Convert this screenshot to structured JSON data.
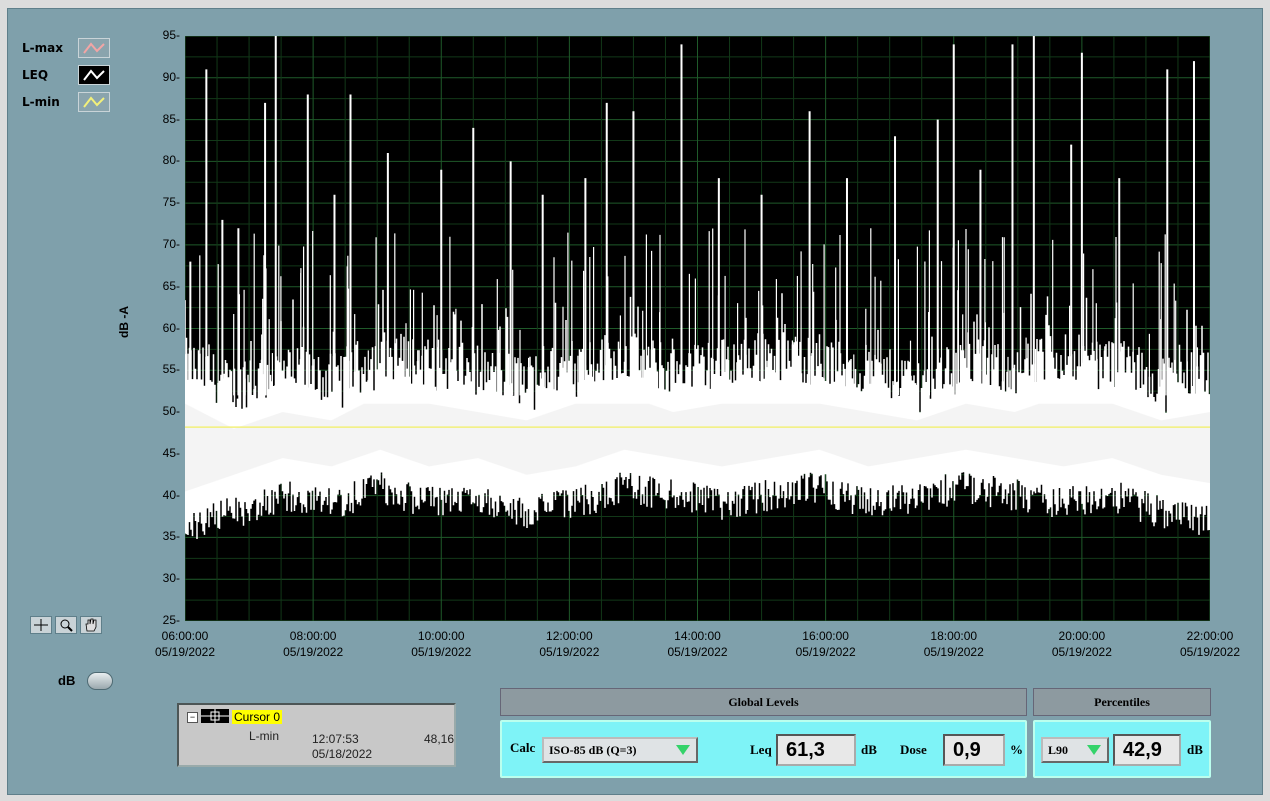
{
  "legend": [
    {
      "label": "L-max",
      "color": "#f2a5a5"
    },
    {
      "label": "LEQ",
      "color": "#ffffff"
    },
    {
      "label": "L-min",
      "color": "#f2f07a"
    }
  ],
  "chart_data": {
    "type": "line",
    "ylabel": "dB -A",
    "ylim": [
      25,
      95
    ],
    "yticks": [
      "95",
      "90",
      "85",
      "80",
      "75",
      "70",
      "65",
      "60",
      "55",
      "50",
      "45",
      "40",
      "35",
      "30",
      "25"
    ],
    "xticks": [
      {
        "time": "06:00:00",
        "date": "05/19/2022"
      },
      {
        "time": "08:00:00",
        "date": "05/19/2022"
      },
      {
        "time": "10:00:00",
        "date": "05/19/2022"
      },
      {
        "time": "12:00:00",
        "date": "05/19/2022"
      },
      {
        "time": "14:00:00",
        "date": "05/19/2022"
      },
      {
        "time": "16:00:00",
        "date": "05/19/2022"
      },
      {
        "time": "18:00:00",
        "date": "05/19/2022"
      },
      {
        "time": "20:00:00",
        "date": "05/19/2022"
      },
      {
        "time": "22:00:00",
        "date": "05/19/2022"
      }
    ],
    "series": [
      {
        "name": "L-min",
        "constant_value": 48.2,
        "color": "#f2f07a"
      },
      {
        "name": "LEQ",
        "color": "#ffffff",
        "band_upper": [
          54,
          51,
          53,
          52,
          55,
          54,
          53,
          52,
          54,
          55,
          53,
          54,
          55,
          54,
          53,
          52,
          54,
          53,
          55,
          54,
          52,
          53
        ],
        "band_lower": [
          38,
          40,
          42,
          41,
          43,
          41,
          42,
          40,
          41,
          43,
          42,
          41,
          42,
          43,
          41,
          42,
          43,
          42,
          41,
          42,
          40,
          39
        ],
        "peaks": [
          {
            "time": "06:05",
            "value": 68
          },
          {
            "time": "06:20",
            "value": 91
          },
          {
            "time": "06:35",
            "value": 73
          },
          {
            "time": "06:50",
            "value": 72
          },
          {
            "time": "07:15",
            "value": 87
          },
          {
            "time": "07:25",
            "value": 95
          },
          {
            "time": "07:55",
            "value": 88
          },
          {
            "time": "08:20",
            "value": 76
          },
          {
            "time": "08:35",
            "value": 88
          },
          {
            "time": "09:10",
            "value": 81
          },
          {
            "time": "10:00",
            "value": 79
          },
          {
            "time": "10:30",
            "value": 84
          },
          {
            "time": "11:05",
            "value": 80
          },
          {
            "time": "11:35",
            "value": 76
          },
          {
            "time": "12:15",
            "value": 78
          },
          {
            "time": "12:35",
            "value": 87
          },
          {
            "time": "13:00",
            "value": 86
          },
          {
            "time": "13:45",
            "value": 94
          },
          {
            "time": "14:20",
            "value": 78
          },
          {
            "time": "15:00",
            "value": 76
          },
          {
            "time": "15:45",
            "value": 86
          },
          {
            "time": "16:20",
            "value": 78
          },
          {
            "time": "17:05",
            "value": 83
          },
          {
            "time": "17:45",
            "value": 85
          },
          {
            "time": "18:00",
            "value": 94
          },
          {
            "time": "18:25",
            "value": 79
          },
          {
            "time": "18:55",
            "value": 94
          },
          {
            "time": "19:15",
            "value": 95
          },
          {
            "time": "19:50",
            "value": 82
          },
          {
            "time": "20:00",
            "value": 93
          },
          {
            "time": "20:35",
            "value": 78
          },
          {
            "time": "21:20",
            "value": 91
          },
          {
            "time": "21:45",
            "value": 92
          }
        ]
      }
    ]
  },
  "tools": [
    "cursor-move",
    "zoom",
    "pan"
  ],
  "db_toggle_label": "dB",
  "cursor": {
    "name": "Cursor 0",
    "plot": "L-min",
    "time": "12:07:53",
    "date": "05/18/2022",
    "value": "48,16"
  },
  "global_levels": {
    "header": "Global Levels",
    "calc_label": "Calc",
    "calc_value": "ISO-85 dB (Q=3)",
    "leq_label": "Leq",
    "leq_value": "61,3",
    "leq_unit": "dB",
    "dose_label": "Dose",
    "dose_value": "0,9",
    "dose_unit": "%"
  },
  "percentiles": {
    "header": "Percentiles",
    "selector": "L90",
    "value": "42,9",
    "unit": "dB"
  }
}
